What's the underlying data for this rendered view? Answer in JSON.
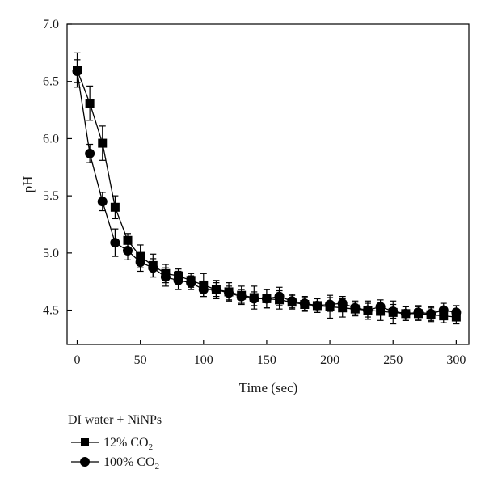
{
  "chart_data": {
    "type": "line",
    "xlabel": "Time (sec)",
    "ylabel": "pH",
    "xlim": [
      -8,
      310
    ],
    "ylim": [
      4.2,
      7.0
    ],
    "x_ticks": [
      0,
      50,
      100,
      150,
      200,
      250,
      300
    ],
    "x_tick_labels": [
      "0",
      "50",
      "100",
      "150",
      "200",
      "250",
      "300"
    ],
    "y_ticks": [
      4.5,
      5.0,
      5.5,
      6.0,
      6.5,
      7.0
    ],
    "y_tick_labels": [
      "4.5",
      "5.0",
      "5.5",
      "6.0",
      "6.5",
      "7.0"
    ],
    "grid": false,
    "legend": {
      "title": "DI water + NiNPs",
      "placement": "below-left"
    },
    "series": [
      {
        "name": "12% CO",
        "name_subscript": "2",
        "marker": "square",
        "color": "#000000",
        "x": [
          0,
          10,
          20,
          30,
          40,
          50,
          60,
          70,
          80,
          90,
          100,
          110,
          120,
          130,
          140,
          150,
          160,
          170,
          180,
          190,
          200,
          210,
          220,
          230,
          240,
          250,
          260,
          270,
          280,
          290,
          300
        ],
        "y": [
          6.6,
          6.31,
          5.96,
          5.4,
          5.11,
          4.97,
          4.89,
          4.82,
          4.8,
          4.76,
          4.72,
          4.68,
          4.66,
          4.63,
          4.61,
          4.6,
          4.59,
          4.57,
          4.55,
          4.54,
          4.53,
          4.52,
          4.51,
          4.5,
          4.49,
          4.48,
          4.47,
          4.47,
          4.46,
          4.45,
          4.44
        ],
        "yerr": [
          0.15,
          0.15,
          0.15,
          0.1,
          0.06,
          0.1,
          0.1,
          0.08,
          0.06,
          0.06,
          0.1,
          0.08,
          0.08,
          0.08,
          0.1,
          0.08,
          0.08,
          0.06,
          0.06,
          0.06,
          0.1,
          0.08,
          0.06,
          0.08,
          0.08,
          0.1,
          0.06,
          0.06,
          0.06,
          0.06,
          0.06
        ]
      },
      {
        "name": "100% CO",
        "name_subscript": "2",
        "marker": "circle",
        "color": "#000000",
        "x": [
          0,
          10,
          20,
          30,
          40,
          50,
          60,
          70,
          80,
          90,
          100,
          110,
          120,
          130,
          140,
          150,
          160,
          170,
          180,
          190,
          200,
          210,
          220,
          230,
          240,
          250,
          260,
          270,
          280,
          290,
          300
        ],
        "y": [
          6.59,
          5.87,
          5.45,
          5.09,
          5.02,
          4.92,
          4.87,
          4.79,
          4.76,
          4.74,
          4.68,
          4.68,
          4.65,
          4.62,
          4.6,
          4.6,
          4.62,
          4.58,
          4.56,
          4.54,
          4.55,
          4.56,
          4.52,
          4.5,
          4.53,
          4.49,
          4.47,
          4.48,
          4.47,
          4.5,
          4.48
        ],
        "yerr": [
          0.1,
          0.08,
          0.08,
          0.12,
          0.08,
          0.08,
          0.08,
          0.08,
          0.08,
          0.06,
          0.06,
          0.06,
          0.06,
          0.06,
          0.06,
          0.08,
          0.08,
          0.06,
          0.06,
          0.06,
          0.06,
          0.06,
          0.06,
          0.06,
          0.06,
          0.06,
          0.06,
          0.06,
          0.06,
          0.06,
          0.06
        ]
      }
    ]
  }
}
